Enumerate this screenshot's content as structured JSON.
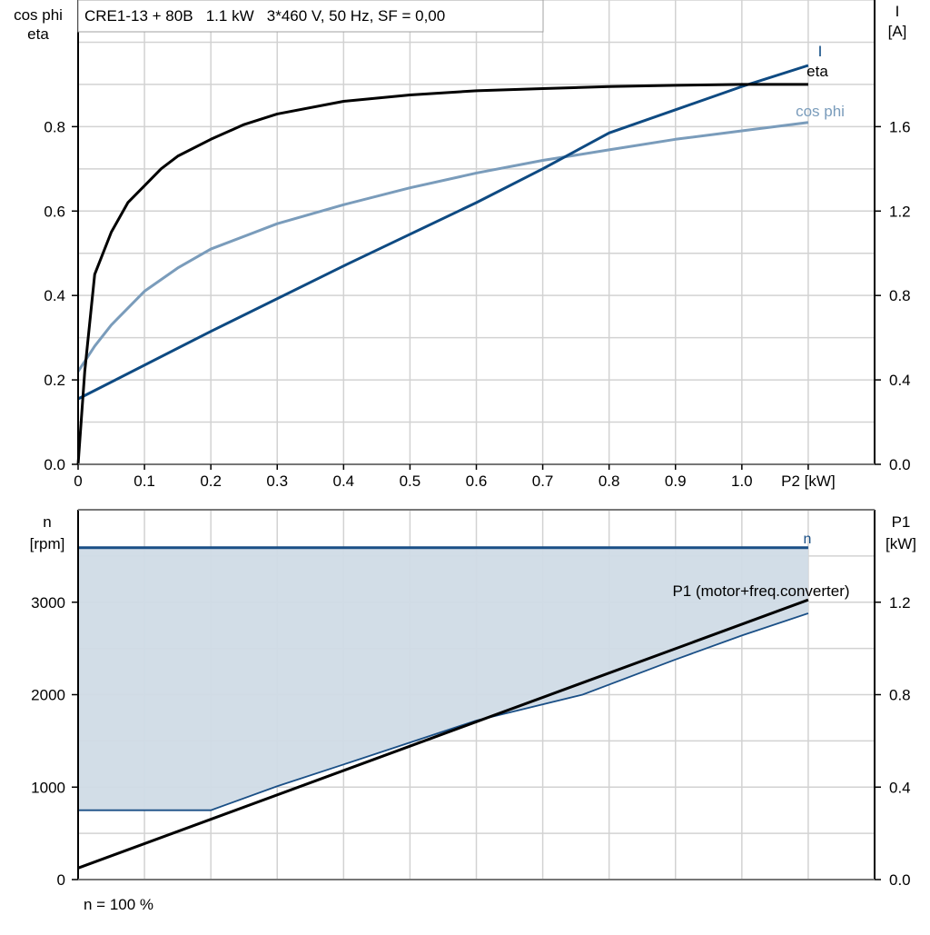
{
  "title": "CRE1-13 + 80B   1.1 kW   3*460 V, 50 Hz, SF = 0,00",
  "footer_note": "n = 100 %",
  "colors": {
    "eta": "#000000",
    "cos_phi": "#7a9cbb",
    "current": "#0e4a82",
    "speed": "#1a4f86",
    "speed_fill": "#d0dbe6",
    "p1": "#000000",
    "grid": "#d2d2d2"
  },
  "chart_data": [
    {
      "type": "line",
      "title": "CRE1-13 + 80B   1.1 kW   3*460 V, 50 Hz, SF = 0,00",
      "xlabel": "P2 [kW]",
      "ylabel_left": [
        "cos phi",
        "eta"
      ],
      "ylabel_right": [
        "I",
        "[A]"
      ],
      "xlim": [
        0,
        1.2
      ],
      "ylim_left": [
        0,
        1.1
      ],
      "ylim_right": [
        0,
        2.2
      ],
      "grid": true,
      "x_ticks": [
        "0",
        "0.1",
        "0.2",
        "0.3",
        "0.4",
        "0.5",
        "0.6",
        "0.7",
        "0.8",
        "0.9",
        "1.0",
        "P2 [kW]"
      ],
      "y_ticks_left": [
        "0.0",
        "0.2",
        "0.4",
        "0.6",
        "0.8"
      ],
      "y_ticks_right": [
        "0.0",
        "0.4",
        "0.8",
        "1.2",
        "1.6"
      ],
      "series": [
        {
          "name": "eta",
          "axis": "left",
          "color": "#000000",
          "x": [
            0,
            0.01,
            0.025,
            0.05,
            0.075,
            0.1,
            0.125,
            0.15,
            0.2,
            0.25,
            0.3,
            0.4,
            0.5,
            0.6,
            0.7,
            0.8,
            0.9,
            1.0,
            1.1
          ],
          "y": [
            0.0,
            0.22,
            0.45,
            0.55,
            0.62,
            0.66,
            0.7,
            0.73,
            0.77,
            0.805,
            0.83,
            0.86,
            0.875,
            0.885,
            0.89,
            0.895,
            0.898,
            0.9,
            0.9
          ]
        },
        {
          "name": "cos phi",
          "axis": "left",
          "color": "#7a9cbb",
          "x": [
            0,
            0.025,
            0.05,
            0.1,
            0.15,
            0.2,
            0.3,
            0.4,
            0.5,
            0.6,
            0.7,
            0.8,
            0.9,
            1.0,
            1.1
          ],
          "y": [
            0.22,
            0.28,
            0.33,
            0.41,
            0.465,
            0.51,
            0.57,
            0.615,
            0.655,
            0.69,
            0.72,
            0.745,
            0.77,
            0.79,
            0.81
          ]
        },
        {
          "name": "I",
          "axis": "right",
          "color": "#0e4a82",
          "x": [
            0,
            0.2,
            0.4,
            0.5,
            0.6,
            0.7,
            0.8,
            0.9,
            1.0,
            1.1
          ],
          "y": [
            0.31,
            0.63,
            0.94,
            1.09,
            1.24,
            1.4,
            1.57,
            1.68,
            1.79,
            1.89
          ]
        }
      ]
    },
    {
      "type": "area",
      "xlim": [
        0,
        1.2
      ],
      "ylabel_left": [
        "n",
        "[rpm]"
      ],
      "ylabel_right": [
        "P1",
        "[kW]"
      ],
      "ylim_left": [
        0,
        4000
      ],
      "ylim_right": [
        0,
        1.6
      ],
      "grid": true,
      "y_ticks_left": [
        "0",
        "1000",
        "2000",
        "3000"
      ],
      "y_ticks_right": [
        "0.0",
        "0.4",
        "0.8",
        "1.2"
      ],
      "series": [
        {
          "name": "n",
          "axis": "left",
          "color": "#1a4f86",
          "x": [
            0,
            1.1
          ],
          "y": [
            3590,
            3590
          ]
        },
        {
          "axis": "left",
          "color": "#1a4f86",
          "x": [
            0,
            0.2,
            0.3,
            0.4,
            0.6,
            0.76,
            0.9,
            1.0,
            1.1
          ],
          "y": [
            750,
            750,
            1010,
            1245,
            1720,
            2000,
            2380,
            2640,
            2880
          ]
        },
        {
          "name": "P1 (motor+freq.converter)",
          "axis": "right",
          "color": "#000000",
          "x": [
            0,
            1.1
          ],
          "y": [
            0.05,
            1.21
          ]
        }
      ]
    }
  ]
}
